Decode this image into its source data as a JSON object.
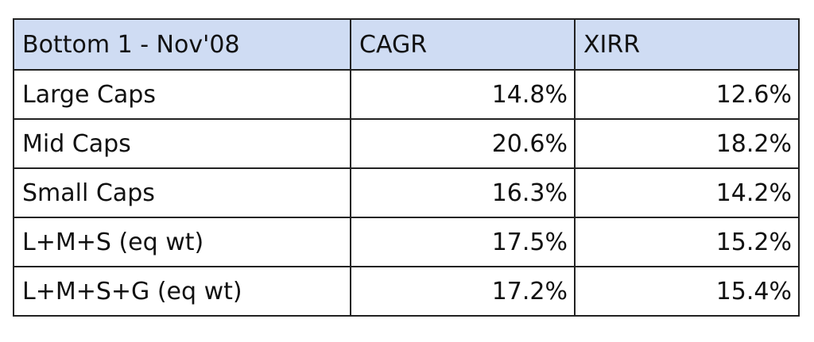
{
  "chart_data": {
    "type": "table",
    "columns": [
      "Bottom 1 - Nov'08",
      "CAGR",
      "XIRR"
    ],
    "rows": [
      {
        "label": "Large Caps",
        "cagr": "14.8%",
        "xirr": "12.6%"
      },
      {
        "label": "Mid Caps",
        "cagr": "20.6%",
        "xirr": "18.2%"
      },
      {
        "label": "Small Caps",
        "cagr": "16.3%",
        "xirr": "14.2%"
      },
      {
        "label": "L+M+S (eq wt)",
        "cagr": "17.5%",
        "xirr": "15.2%"
      },
      {
        "label": "L+M+S+G (eq wt)",
        "cagr": "17.2%",
        "xirr": "15.4%"
      }
    ]
  },
  "colors": {
    "header_bg": "#cfdcf3",
    "border": "#222222",
    "text": "#111111"
  }
}
